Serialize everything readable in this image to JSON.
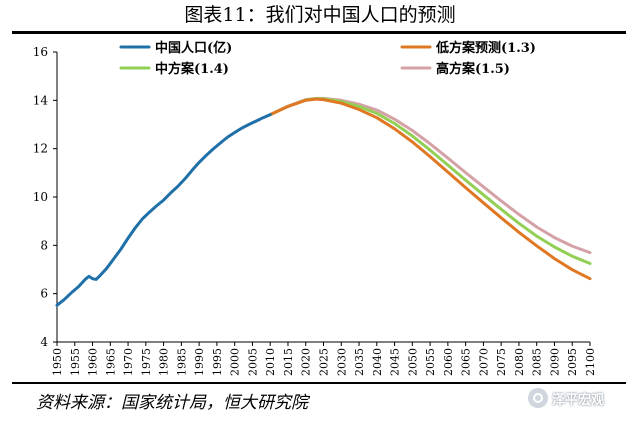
{
  "page": {
    "title": "图表11：我们对中国人口的预测",
    "source": "资料来源：国家统计局，恒大研究院",
    "watermark_text": "泽平宏观",
    "watermark_icon": "wechat-channel-icon"
  },
  "colors": {
    "historical": "#1f6fa8",
    "low": "#e07722",
    "mid": "#92cf55",
    "high": "#d4a2a6",
    "rule": "#000000"
  },
  "chart_data": {
    "type": "line",
    "title": "",
    "xlabel": "",
    "ylabel": "",
    "xlim": [
      1950,
      2100
    ],
    "ylim": [
      4,
      16
    ],
    "yticks": [
      4,
      6,
      8,
      10,
      12,
      14,
      16
    ],
    "xticks": [
      1950,
      1955,
      1960,
      1965,
      1970,
      1975,
      1980,
      1985,
      1990,
      1995,
      2000,
      2005,
      2010,
      2015,
      2020,
      2025,
      2030,
      2035,
      2040,
      2045,
      2050,
      2055,
      2060,
      2065,
      2070,
      2075,
      2080,
      2085,
      2090,
      2095,
      2100
    ],
    "grid": false,
    "legend_position": "top",
    "series": [
      {
        "key": "historical",
        "name": "中国人口(亿)",
        "color": "#1f6fa8",
        "x": [
          1950,
          1952,
          1954,
          1956,
          1958,
          1959,
          1960,
          1961,
          1962,
          1964,
          1966,
          1968,
          1970,
          1972,
          1974,
          1976,
          1978,
          1980,
          1982,
          1984,
          1986,
          1988,
          1990,
          1992,
          1994,
          1996,
          1998,
          2000,
          2002,
          2004,
          2006,
          2008,
          2010
        ],
        "values": [
          5.52,
          5.75,
          6.03,
          6.28,
          6.6,
          6.72,
          6.62,
          6.59,
          6.73,
          7.05,
          7.45,
          7.85,
          8.3,
          8.72,
          9.09,
          9.37,
          9.63,
          9.87,
          10.17,
          10.44,
          10.75,
          11.1,
          11.43,
          11.72,
          11.99,
          12.24,
          12.48,
          12.67,
          12.85,
          13.0,
          13.14,
          13.28,
          13.41
        ]
      },
      {
        "key": "low",
        "name": "低方案预测(1.3)",
        "color": "#e07722",
        "x": [
          2010,
          2015,
          2020,
          2023,
          2025,
          2030,
          2035,
          2040,
          2045,
          2050,
          2055,
          2060,
          2065,
          2070,
          2075,
          2080,
          2085,
          2090,
          2095,
          2100
        ],
        "values": [
          13.41,
          13.75,
          14.0,
          14.05,
          14.03,
          13.88,
          13.62,
          13.28,
          12.82,
          12.28,
          11.67,
          11.03,
          10.39,
          9.76,
          9.14,
          8.54,
          7.98,
          7.45,
          6.99,
          6.62
        ]
      },
      {
        "key": "mid",
        "name": "中方案(1.4)",
        "color": "#92cf55",
        "x": [
          2010,
          2015,
          2020,
          2023,
          2025,
          2030,
          2035,
          2040,
          2045,
          2050,
          2055,
          2060,
          2065,
          2070,
          2075,
          2080,
          2085,
          2090,
          2095,
          2100
        ],
        "values": [
          13.41,
          13.75,
          14.02,
          14.07,
          14.06,
          13.95,
          13.75,
          13.46,
          13.04,
          12.53,
          11.94,
          11.32,
          10.7,
          10.09,
          9.49,
          8.91,
          8.38,
          7.93,
          7.55,
          7.25
        ]
      },
      {
        "key": "high",
        "name": "高方案(1.5)",
        "color": "#d4a2a6",
        "x": [
          2010,
          2015,
          2020,
          2023,
          2025,
          2030,
          2035,
          2040,
          2045,
          2050,
          2055,
          2060,
          2065,
          2070,
          2075,
          2080,
          2085,
          2090,
          2095,
          2100
        ],
        "values": [
          13.41,
          13.76,
          14.03,
          14.08,
          14.08,
          14.0,
          13.84,
          13.6,
          13.22,
          12.75,
          12.2,
          11.61,
          11.01,
          10.42,
          9.84,
          9.28,
          8.76,
          8.32,
          7.97,
          7.7
        ]
      }
    ],
    "legend": [
      {
        "key": "historical",
        "label": "中国人口(亿)"
      },
      {
        "key": "low",
        "label": "低方案预测(1.3)"
      },
      {
        "key": "mid",
        "label": "中方案(1.4)"
      },
      {
        "key": "high",
        "label": "高方案(1.5)"
      }
    ]
  }
}
